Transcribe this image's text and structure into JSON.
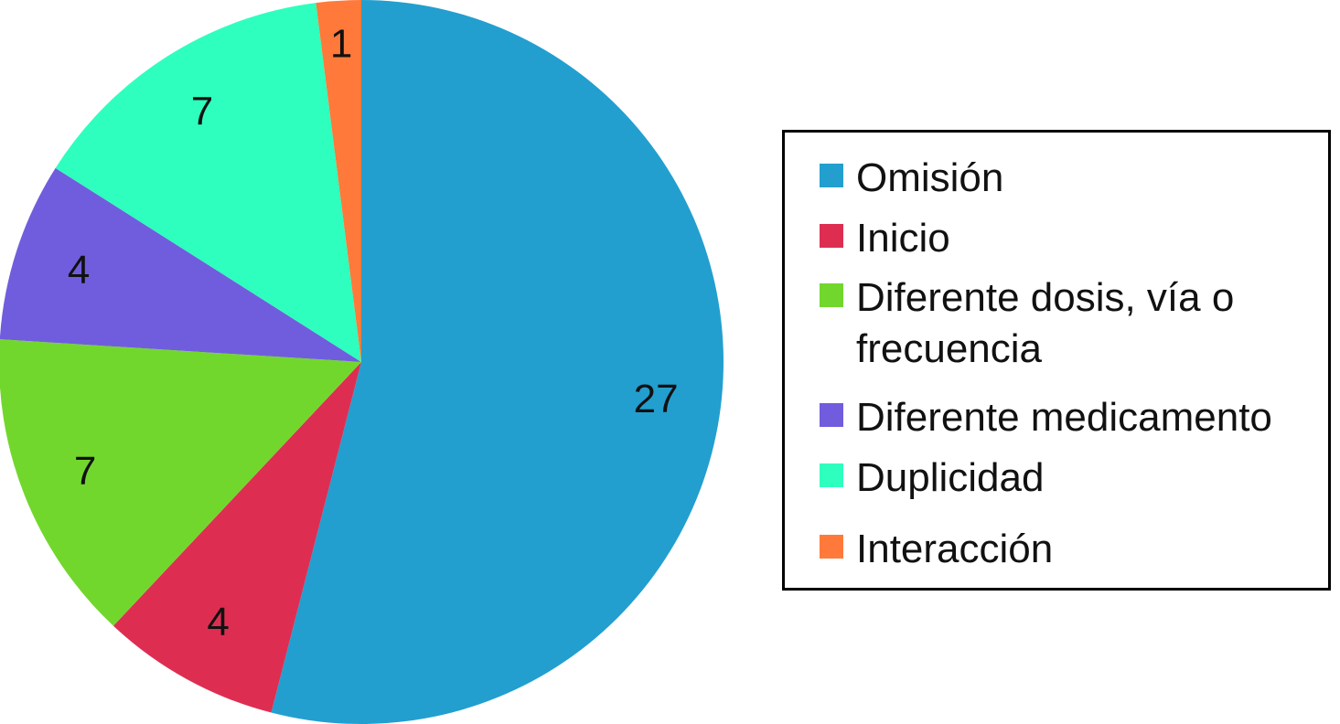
{
  "chart_data": {
    "type": "pie",
    "title": "",
    "categories": [
      "Omisión",
      "Inicio",
      "Diferente dosis, vía o frecuencia",
      "Diferente medicamento",
      "Duplicidad",
      "Interacción"
    ],
    "values": [
      27,
      4,
      7,
      4,
      7,
      1
    ],
    "colors": [
      "#229fcf",
      "#dd2e52",
      "#72d72d",
      "#705ddd",
      "#2fffbe",
      "#ff7a3a"
    ],
    "data_labels": [
      "27",
      "4",
      "7",
      "4",
      "7",
      "1"
    ],
    "start_angle": "12 o'clock",
    "direction": "clockwise",
    "legend_position": "right"
  },
  "legend": {
    "items": [
      {
        "label": "Omisión",
        "color": "#229fcf"
      },
      {
        "label": "Inicio",
        "color": "#dd2e52"
      },
      {
        "label": "Diferente dosis, vía o frecuencia",
        "color": "#72d72d"
      },
      {
        "label": "Diferente medicamento",
        "color": "#705ddd"
      },
      {
        "label": "Duplicidad",
        "color": "#2fffbe"
      },
      {
        "label": "Interacción",
        "color": "#ff7a3a"
      }
    ]
  }
}
